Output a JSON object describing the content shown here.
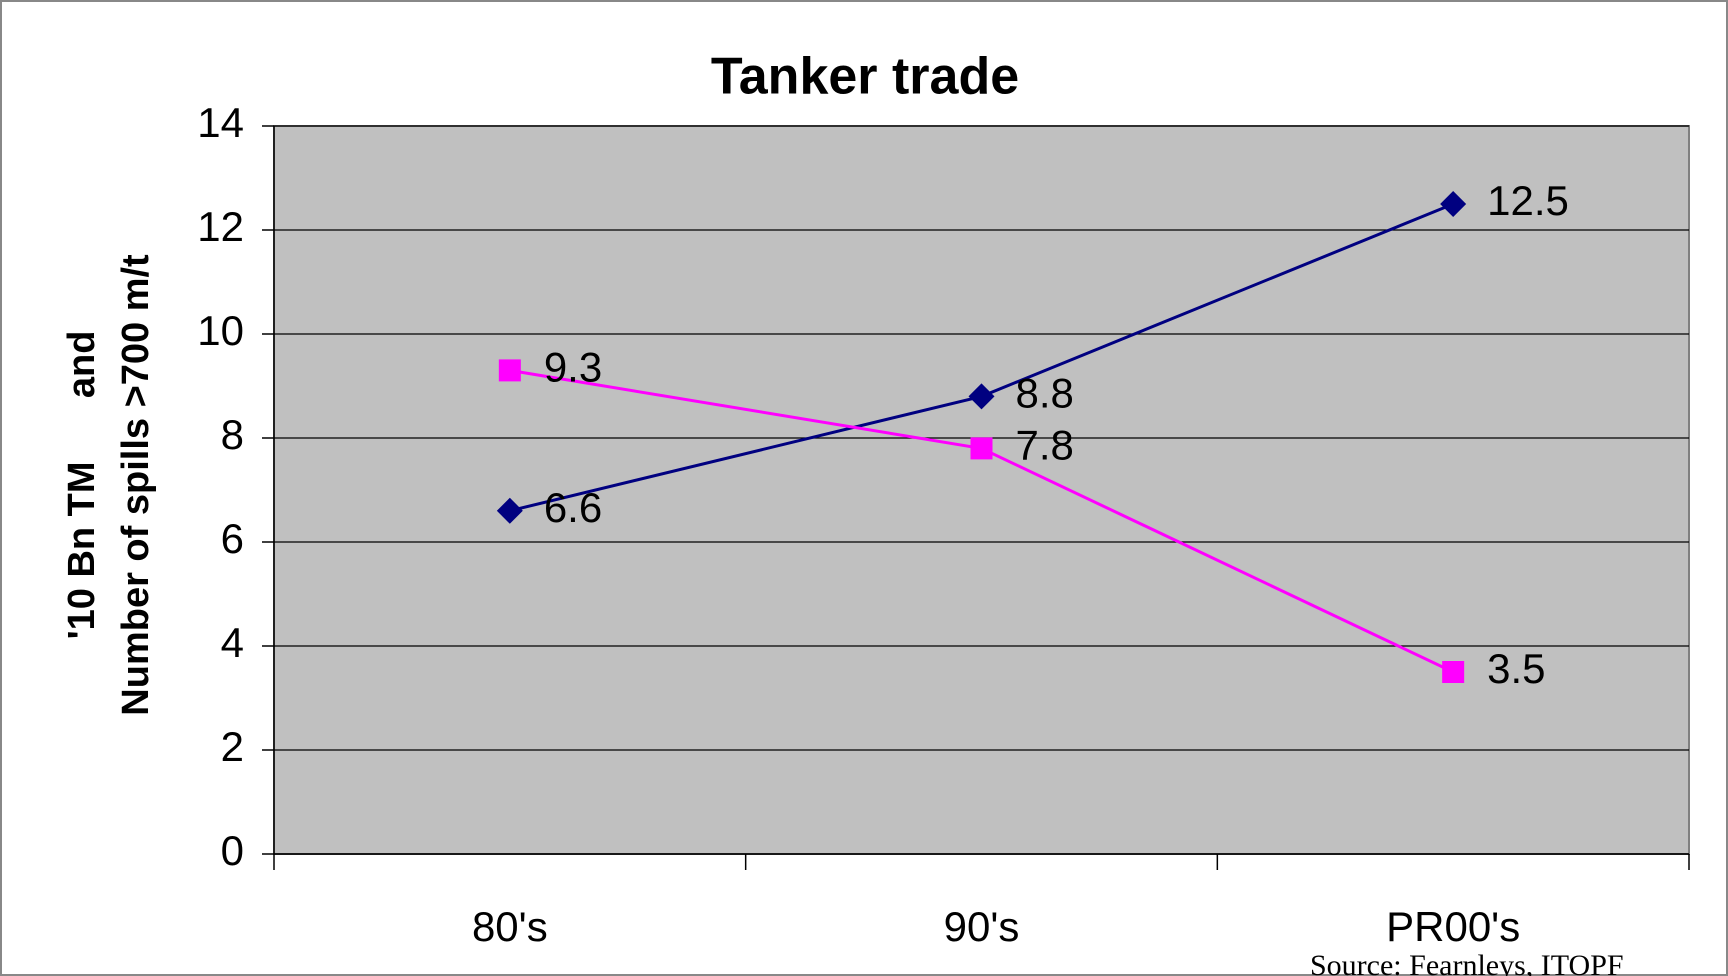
{
  "chart_data": {
    "type": "line",
    "title": "Tanker trade",
    "y_label_lines": [
      "'10 Bn TM      and",
      "Number of spills >700 m/t"
    ],
    "categories": [
      "80's",
      "90's",
      "PR00's"
    ],
    "series": [
      {
        "color": "#000080",
        "marker": "diamond",
        "values": [
          6.6,
          8.8,
          12.5
        ]
      },
      {
        "color": "#ff00ff",
        "marker": "square",
        "values": [
          9.3,
          7.8,
          3.5
        ]
      }
    ],
    "ylim": [
      0,
      14
    ],
    "yticks": [
      0,
      2,
      4,
      6,
      8,
      10,
      12,
      14
    ],
    "grid": true,
    "source": "Source: Fearnleys, ITOPF"
  }
}
